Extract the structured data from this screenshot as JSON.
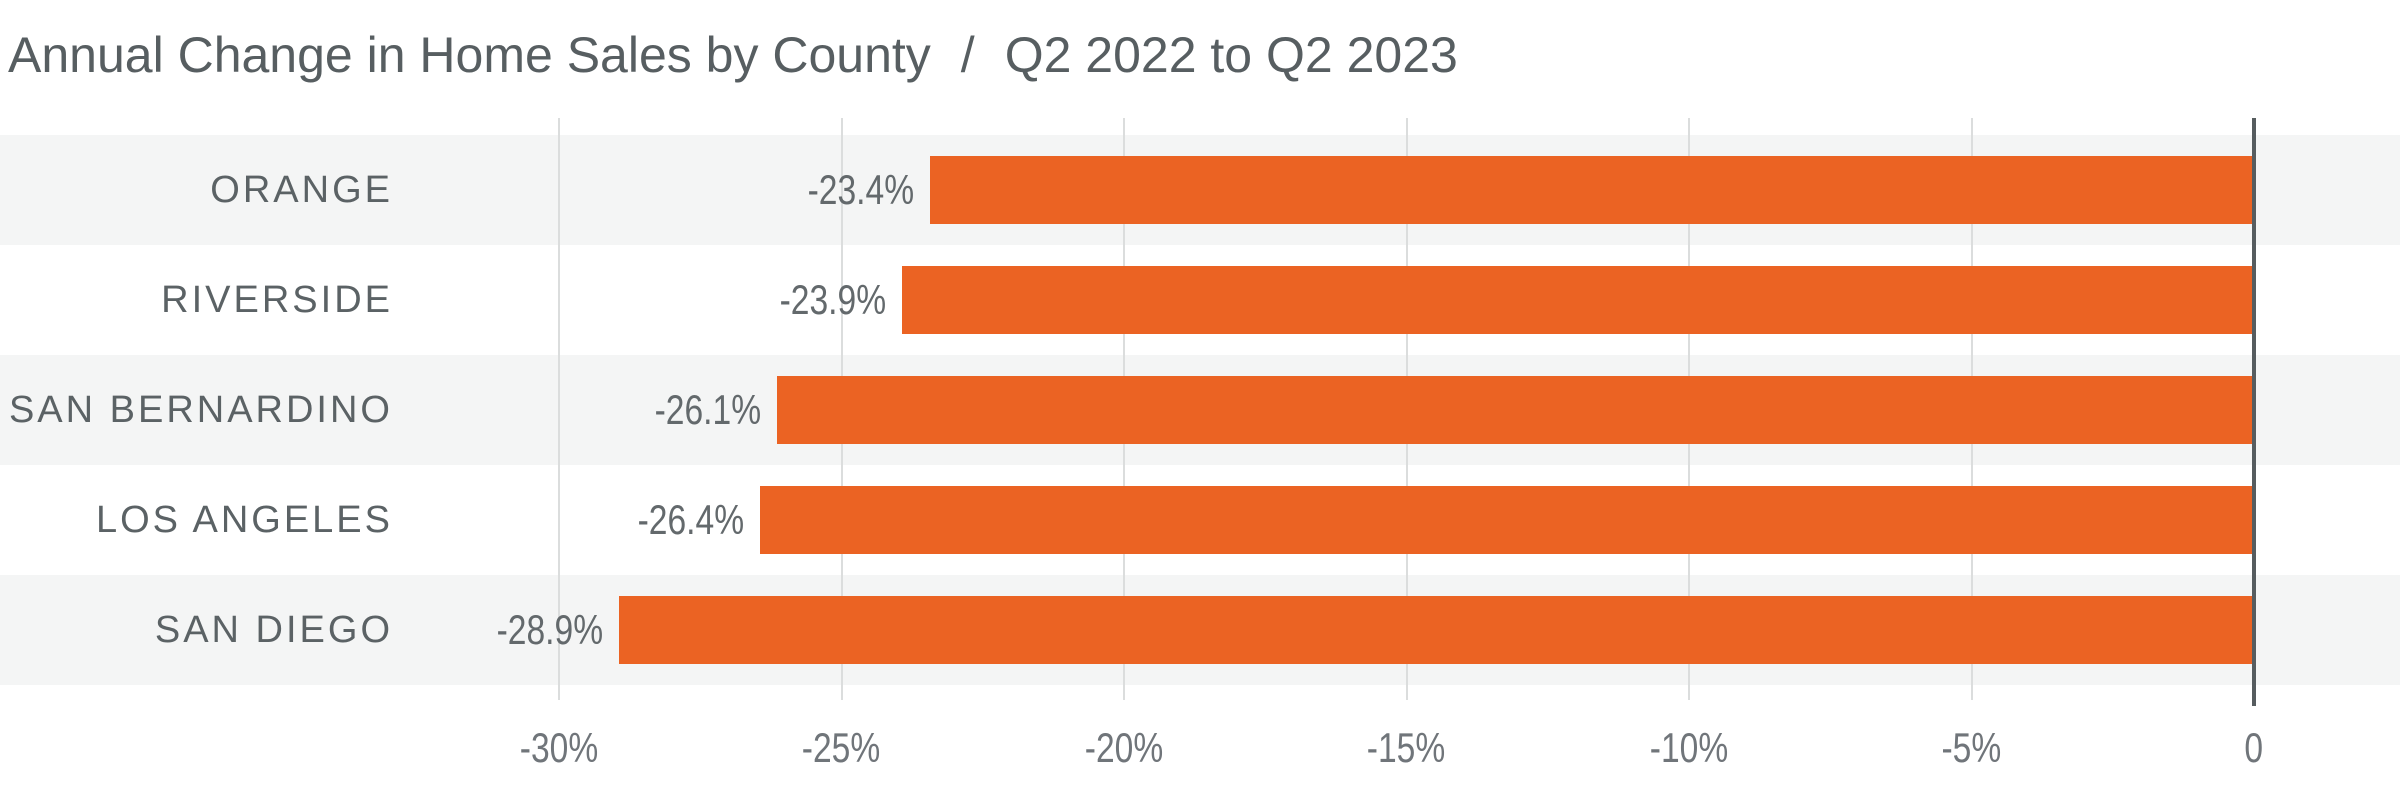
{
  "title": {
    "main": "Annual Change in Home Sales by County",
    "separator": "/",
    "period": "Q2 2022 to Q2 2023"
  },
  "colors": {
    "bar": "#EB6323",
    "row_stripe": "#F4F5F5",
    "row_alt": "#FFFFFF",
    "gridline": "#DBDDDD",
    "zero_axis_line": "#565C5F",
    "title_text": "#575E61",
    "category_text": "#5B6265",
    "value_text": "#63696C",
    "tick_text": "#70757A",
    "background": "#FFFFFF"
  },
  "chart_data": {
    "type": "bar",
    "orientation": "horizontal",
    "title": "Annual Change in Home Sales by County / Q2 2022 to Q2 2023",
    "categories": [
      "ORANGE",
      "RIVERSIDE",
      "SAN BERNARDINO",
      "LOS ANGELES",
      "SAN DIEGO"
    ],
    "values": [
      -23.4,
      -23.9,
      -26.1,
      -26.4,
      -28.9
    ],
    "value_labels": [
      "-23.4%",
      "-23.9%",
      "-26.1%",
      "-26.4%",
      "-28.9%"
    ],
    "xlabel": "",
    "ylabel": "",
    "xlim": [
      -30,
      0
    ],
    "x_ticks": [
      {
        "value": -30,
        "label": "-30%"
      },
      {
        "value": -25,
        "label": "-25%"
      },
      {
        "value": -20,
        "label": "-20%"
      },
      {
        "value": -15,
        "label": "-15%"
      },
      {
        "value": -10,
        "label": "-10%"
      },
      {
        "value": -5,
        "label": "-5%"
      },
      {
        "value": 0,
        "label": "0"
      }
    ],
    "grid": "vertical-gridlines",
    "legend": "none",
    "row_stripes": "alternating, first row shaded",
    "bar_value_label_position": "left of bar end"
  }
}
